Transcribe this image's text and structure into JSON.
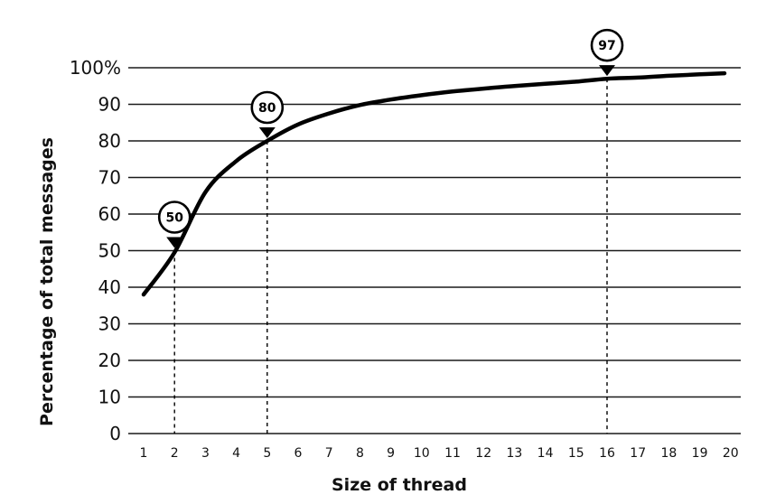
{
  "chart_data": {
    "type": "line",
    "title": "",
    "xlabel": "Size of thread",
    "ylabel": "Percentage of total messages",
    "x_ticks": [
      "1",
      "2",
      "3",
      "4",
      "5",
      "6",
      "7",
      "8",
      "9",
      "10",
      "11",
      "12",
      "13",
      "14",
      "15",
      "16",
      "17",
      "18",
      "19",
      "20"
    ],
    "y_ticks": [
      "0",
      "10",
      "20",
      "30",
      "40",
      "50",
      "60",
      "70",
      "80",
      "90",
      "100%"
    ],
    "xlim": [
      0.6,
      20.6
    ],
    "ylim": [
      0,
      100
    ],
    "grid": "horizontal",
    "legend": "none",
    "series": [
      {
        "x": [
          1,
          2,
          3,
          4,
          5,
          6,
          7,
          8,
          9,
          10,
          11,
          12,
          13,
          14,
          15,
          16,
          17,
          18,
          19,
          19.8
        ],
        "values": [
          38,
          49.5,
          66,
          74.5,
          80,
          84.5,
          87.5,
          89.8,
          91.3,
          92.5,
          93.5,
          94.3,
          95,
          95.6,
          96.2,
          97,
          97.3,
          97.8,
          98.2,
          98.5
        ]
      }
    ],
    "annotations": [
      {
        "x": 2,
        "y": 50,
        "label": "50"
      },
      {
        "x": 5,
        "y": 80,
        "label": "80"
      },
      {
        "x": 16,
        "y": 97,
        "label": "97"
      }
    ],
    "colors": {
      "line": "#000000",
      "grid": "#1a1a1a",
      "background": "#ffffff"
    }
  }
}
